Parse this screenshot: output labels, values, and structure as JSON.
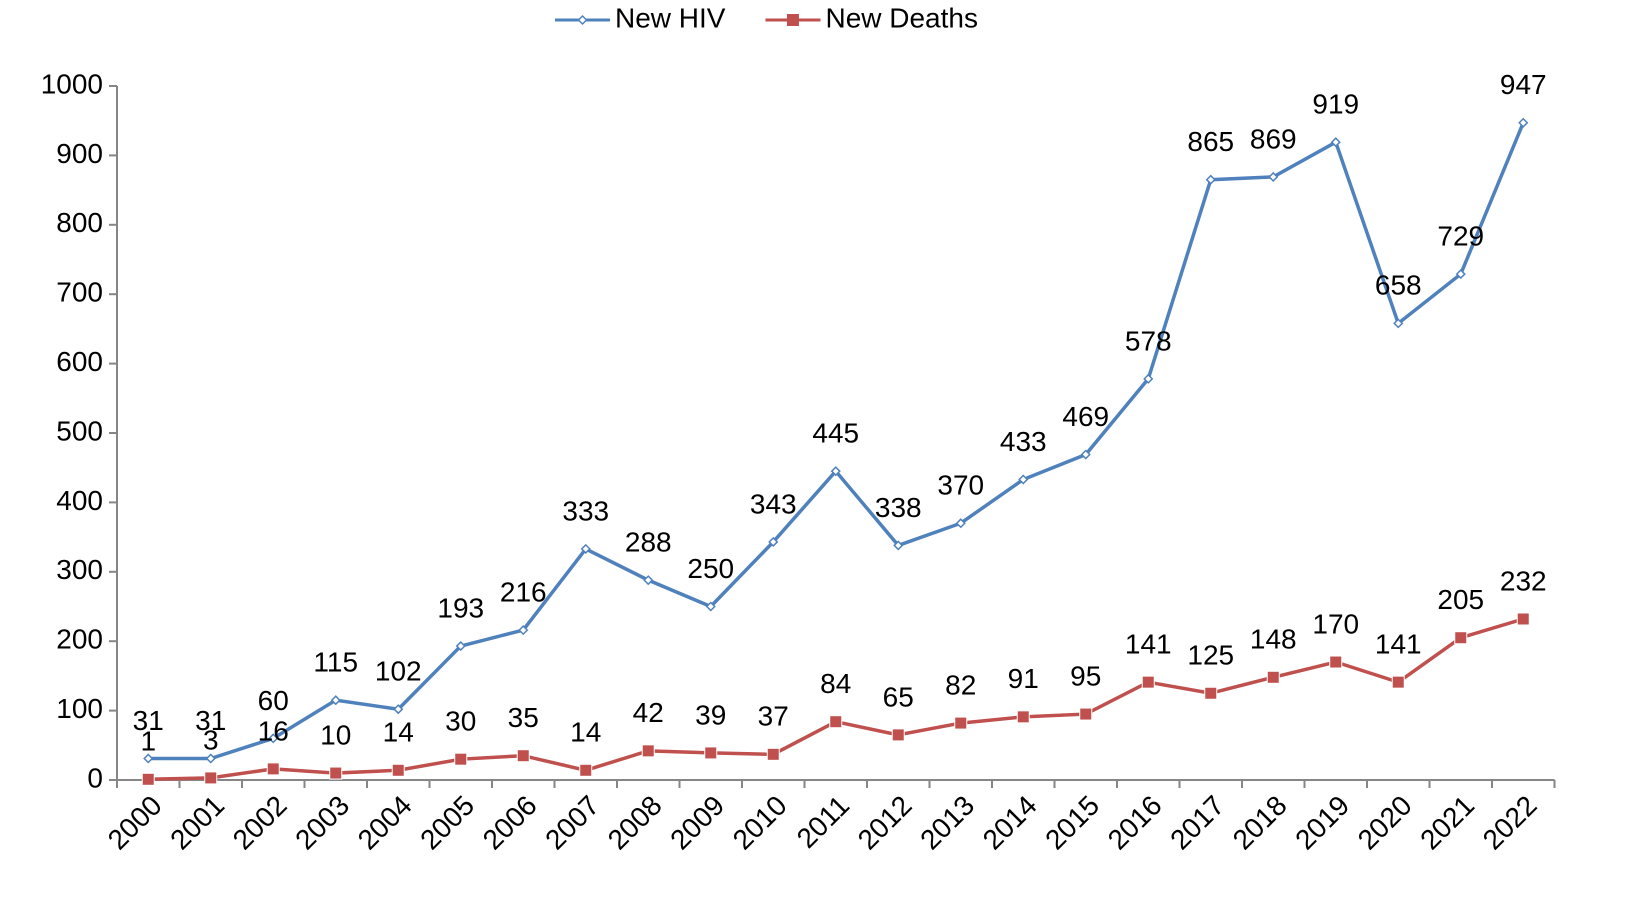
{
  "chart_data": {
    "type": "line",
    "categories": [
      "2000",
      "2001",
      "2002",
      "2003",
      "2004",
      "2005",
      "2006",
      "2007",
      "2008",
      "2009",
      "2010",
      "2011",
      "2012",
      "2013",
      "2014",
      "2015",
      "2016",
      "2017",
      "2018",
      "2019",
      "2020",
      "2021",
      "2022"
    ],
    "series": [
      {
        "name": "New HIV",
        "color": "#4f81bd",
        "values": [
          31,
          31,
          60,
          115,
          102,
          193,
          216,
          333,
          288,
          250,
          343,
          445,
          338,
          370,
          433,
          469,
          578,
          865,
          869,
          919,
          658,
          729,
          947
        ]
      },
      {
        "name": "New Deaths",
        "color": "#c0504d",
        "values": [
          1,
          3,
          16,
          10,
          14,
          30,
          35,
          14,
          42,
          39,
          37,
          84,
          65,
          82,
          91,
          95,
          141,
          125,
          148,
          170,
          141,
          205,
          232
        ]
      }
    ],
    "ylim": [
      0,
      1000
    ],
    "yticks": [
      0,
      100,
      200,
      300,
      400,
      500,
      600,
      700,
      800,
      900,
      1000
    ],
    "grid": false,
    "legend": "top"
  }
}
